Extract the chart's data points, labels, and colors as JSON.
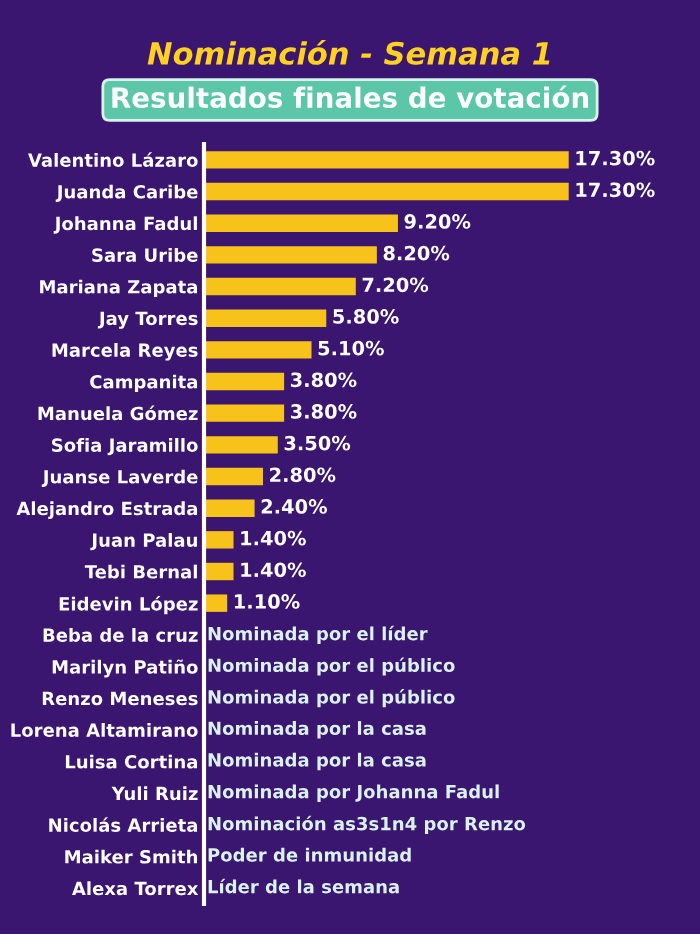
{
  "chart_data": {
    "type": "bar",
    "orientation": "horizontal",
    "title": "Nominación - Semana 1",
    "subtitle": "Resultados finales de votación",
    "categories": [
      "Valentino Lázaro",
      "Juanda Caribe",
      "Johanna Fadul",
      "Sara Uribe",
      "Mariana Zapata",
      "Jay Torres",
      "Marcela Reyes",
      "Campanita",
      "Manuela Gómez",
      "Sofia Jaramillo",
      "Juanse Laverde",
      "Alejandro Estrada",
      "Juan Palau",
      "Tebi Bernal",
      "Eidevin López",
      "Beba de la cruz",
      "Marilyn Patiño",
      "Renzo Meneses",
      "Lorena Altamirano",
      "Luisa Cortina",
      "Yuli Ruiz",
      "Nicolás Arrieta",
      "Maiker Smith",
      "Alexa Torrex"
    ],
    "values": [
      17.3,
      17.3,
      9.2,
      8.2,
      7.2,
      5.8,
      5.1,
      3.8,
      3.8,
      3.5,
      2.8,
      2.4,
      1.4,
      1.4,
      1.1,
      null,
      null,
      null,
      null,
      null,
      null,
      null,
      null,
      null
    ],
    "value_labels": [
      "17.30%",
      "17.30%",
      "9.20%",
      "8.20%",
      "7.20%",
      "5.80%",
      "5.10%",
      "3.80%",
      "3.80%",
      "3.50%",
      "2.80%",
      "2.40%",
      "1.40%",
      "1.40%",
      "1.10%",
      null,
      null,
      null,
      null,
      null,
      null,
      null,
      null,
      null
    ],
    "color": "#f7c21a",
    "tick_labels": "y",
    "grid": false,
    "legend": false,
    "annotations": [
      "Nominada por el líder",
      "Nominada por el público",
      "Nominada por el público",
      "Nominada por la casa",
      "Nominada por la casa",
      "Nominada por Johanna Fadul",
      "Nominación as3s1n4 por Renzo",
      "Poder de inmunidad",
      "Líder de la semana"
    ]
  }
}
